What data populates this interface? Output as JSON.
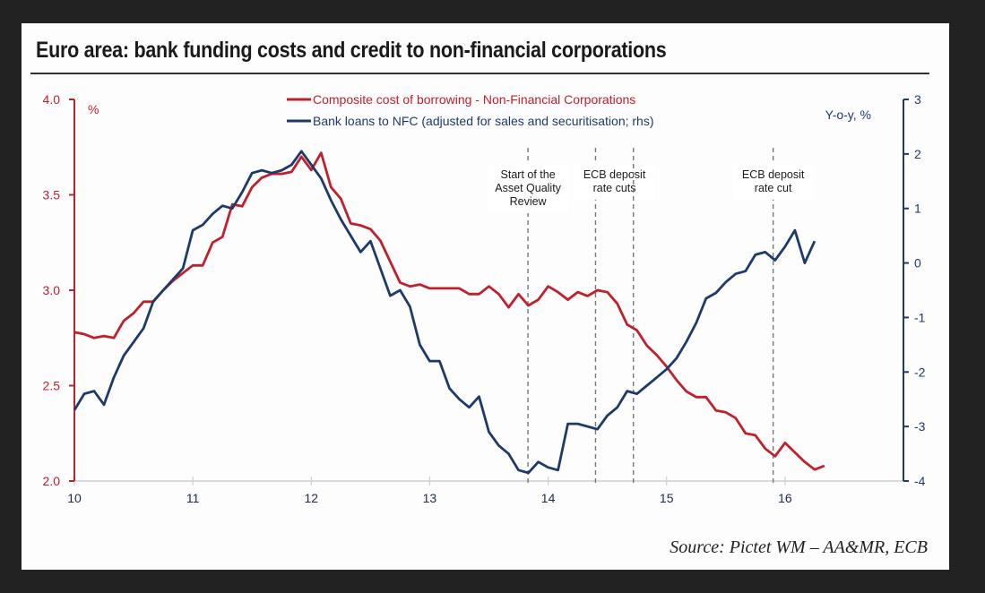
{
  "chart_data": {
    "type": "line",
    "title": "Euro area: bank funding costs and credit to non-financial corporations",
    "source": "Source: Pictet WM – AA&MR, ECB",
    "xlabel": "",
    "x_ticks": [
      "10",
      "11",
      "12",
      "13",
      "14",
      "15",
      "16"
    ],
    "x_range": [
      10,
      17
    ],
    "left_axis": {
      "label": "%",
      "ylim": [
        2.0,
        4.0
      ],
      "ticks": [
        "4.0",
        "3.5",
        "3.0",
        "2.5",
        "2.0"
      ],
      "color": "#c0202b"
    },
    "right_axis": {
      "label": "Y-o-y, %",
      "ylim": [
        -4,
        3
      ],
      "ticks": [
        "3",
        "2",
        "1",
        "0",
        "-1",
        "-2",
        "-3",
        "-4"
      ],
      "color": "#1d3a6b"
    },
    "grid": false,
    "legend_position": "top-center",
    "series": [
      {
        "name": "Composite cost of borrowing - Non-Financial Corporations",
        "axis": "left",
        "color": "#c0202b",
        "x_start": 10.0,
        "x_step_months": 1,
        "values": [
          2.78,
          2.77,
          2.75,
          2.76,
          2.75,
          2.84,
          2.88,
          2.94,
          2.94,
          3.0,
          3.05,
          3.09,
          3.13,
          3.13,
          3.25,
          3.28,
          3.45,
          3.44,
          3.54,
          3.59,
          3.61,
          3.61,
          3.62,
          3.7,
          3.63,
          3.72,
          3.54,
          3.48,
          3.35,
          3.34,
          3.32,
          3.26,
          3.15,
          3.04,
          3.02,
          3.03,
          3.01,
          3.01,
          3.01,
          3.01,
          2.98,
          2.98,
          3.02,
          2.98,
          2.91,
          2.98,
          2.92,
          2.95,
          3.02,
          2.99,
          2.95,
          2.99,
          2.97,
          3.0,
          2.99,
          2.93,
          2.82,
          2.79,
          2.71,
          2.66,
          2.6,
          2.53,
          2.47,
          2.44,
          2.44,
          2.37,
          2.36,
          2.33,
          2.25,
          2.24,
          2.17,
          2.13,
          2.2,
          2.15,
          2.1,
          2.06,
          2.08
        ]
      },
      {
        "name": "Bank loans to NFC (adjusted for sales and securitisation; rhs)",
        "axis": "right",
        "color": "#1d3a6b",
        "x_start": 10.0,
        "x_step_months": 1,
        "values": [
          -2.7,
          -2.4,
          -2.35,
          -2.6,
          -2.1,
          -1.7,
          -1.45,
          -1.2,
          -0.7,
          -0.5,
          -0.3,
          -0.1,
          0.6,
          0.7,
          0.9,
          1.05,
          1.0,
          1.3,
          1.65,
          1.7,
          1.65,
          1.7,
          1.8,
          2.05,
          1.8,
          1.55,
          1.15,
          0.8,
          0.5,
          0.2,
          0.4,
          -0.1,
          -0.6,
          -0.5,
          -0.8,
          -1.5,
          -1.8,
          -1.8,
          -2.3,
          -2.5,
          -2.65,
          -2.45,
          -3.1,
          -3.35,
          -3.5,
          -3.8,
          -3.85,
          -3.65,
          -3.75,
          -3.8,
          -2.95,
          -2.95,
          -3.0,
          -3.05,
          -2.8,
          -2.65,
          -2.35,
          -2.4,
          -2.25,
          -2.1,
          -1.95,
          -1.75,
          -1.45,
          -1.1,
          -0.65,
          -0.55,
          -0.35,
          -0.2,
          -0.15,
          0.15,
          0.2,
          0.05,
          0.3,
          0.6,
          0.0,
          0.4
        ]
      }
    ],
    "annotations": [
      {
        "x": 13.83,
        "lines": [
          "Start of the",
          "Asset Quality",
          "Review"
        ]
      },
      {
        "x": 14.4,
        "lines": [
          "ECB deposit",
          "rate cuts"
        ]
      },
      {
        "x": 14.72,
        "lines": []
      },
      {
        "x": 15.9,
        "lines": [
          "ECB deposit",
          "rate cut"
        ]
      }
    ]
  }
}
